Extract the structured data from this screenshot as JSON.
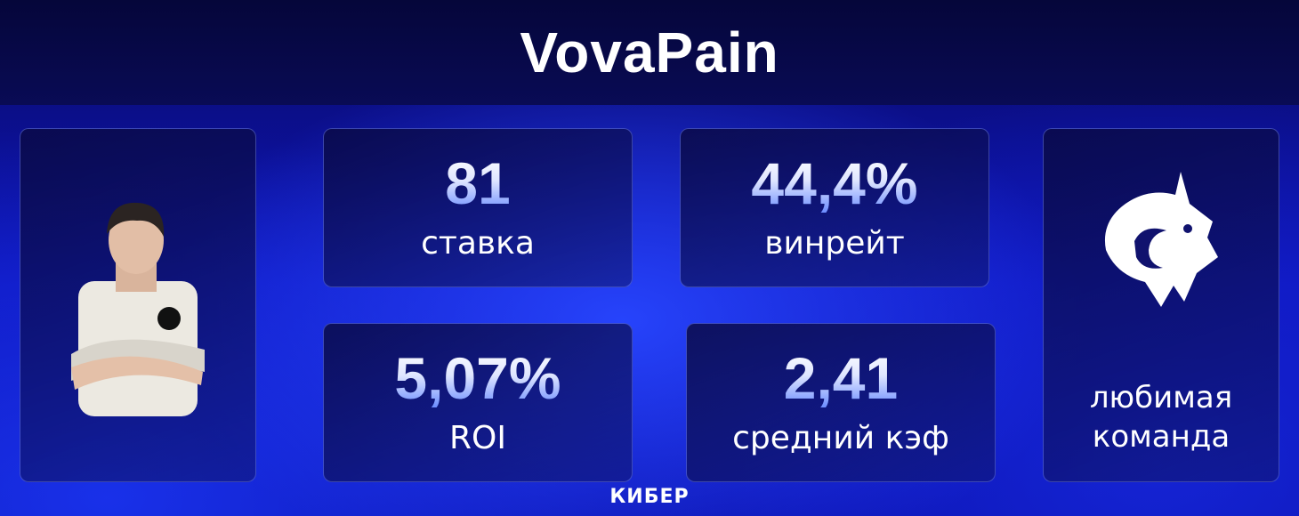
{
  "header": {
    "title": "VovaPain"
  },
  "stats": [
    {
      "value": "81",
      "label": "ставка"
    },
    {
      "value": "44,4%",
      "label": "винрейт"
    },
    {
      "value": "5,07%",
      "label": "ROI"
    },
    {
      "value": "2,41",
      "label": "средний кэф"
    }
  ],
  "favorite_team": {
    "label_line1": "любимая",
    "label_line2": "команда"
  },
  "brand": "КИБЕР"
}
